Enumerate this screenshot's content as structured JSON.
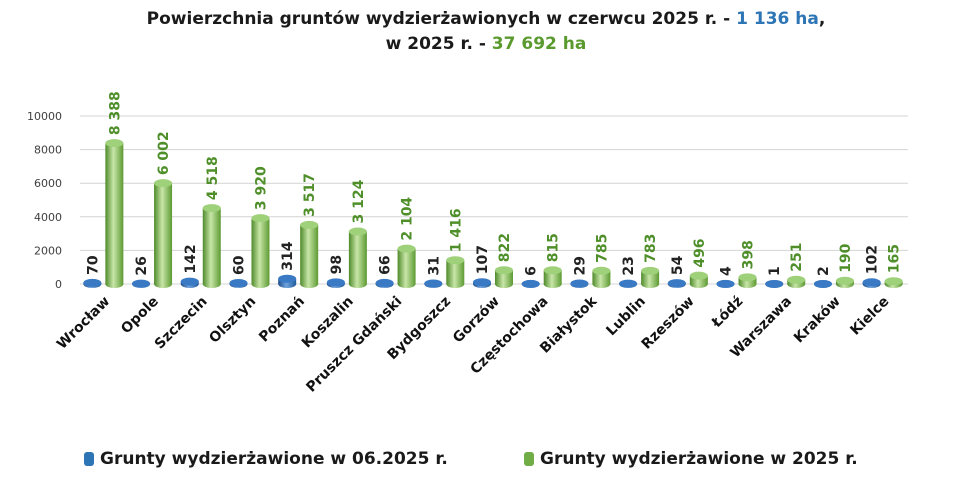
{
  "title": {
    "line1_prefix": "Powierzchnia gruntów wydzierżawionych  w czerwcu 2025 r. - ",
    "line1_value": "1 136 ha",
    "line1_suffix": ",",
    "line2_prefix": "w 2025 r. - ",
    "line2_value": "37 692 ha"
  },
  "chart_data": {
    "type": "bar",
    "title": "Powierzchnia gruntów wydzierżawionych w czerwcu 2025 r. - 1 136 ha, w 2025 r. - 37 692 ha",
    "categories": [
      "Wrocław",
      "Opole",
      "Szczecin",
      "Olsztyn",
      "Poznań",
      "Koszalin",
      "Pruszcz Gdański",
      "Bydgoszcz",
      "Gorzów",
      "Częstochowa",
      "Białystok",
      "Lublin",
      "Rzeszów",
      "Łódź",
      "Warszawa",
      "Kraków",
      "Kielce"
    ],
    "series": [
      {
        "name": "Grunty wydzierżawione w 06.2025 r.",
        "color": "#2e75b6",
        "values": [
          70,
          26,
          142,
          60,
          314,
          98,
          66,
          31,
          107,
          6,
          29,
          23,
          54,
          4,
          1,
          2,
          102
        ],
        "labels": [
          "70",
          "26",
          "142",
          "60",
          "314",
          "98",
          "66",
          "31",
          "107",
          "6",
          "29",
          "23",
          "54",
          "4",
          "1",
          "2",
          "102"
        ]
      },
      {
        "name": "Grunty wydzierżawione w 2025 r.",
        "color": "#70ad47",
        "values": [
          8388,
          6002,
          4518,
          3920,
          3517,
          3124,
          2104,
          1416,
          822,
          815,
          785,
          783,
          496,
          398,
          251,
          190,
          165
        ],
        "labels": [
          "8 388",
          "6 002",
          "4 518",
          "3 920",
          "3 517",
          "3 124",
          "2 104",
          "1 416",
          "822",
          "815",
          "785",
          "783",
          "496",
          "398",
          "251",
          "190",
          "165"
        ]
      }
    ],
    "yticks": [
      "0",
      "2000",
      "4000",
      "6000",
      "8000",
      "10000"
    ],
    "ylim": [
      0,
      10000
    ],
    "grid": true,
    "legend": "bottom"
  },
  "legend": {
    "blue_label": "Grunty wydzierżawione w 06.2025 r.",
    "green_label": "Grunty wydzierżawione w 2025 r."
  }
}
